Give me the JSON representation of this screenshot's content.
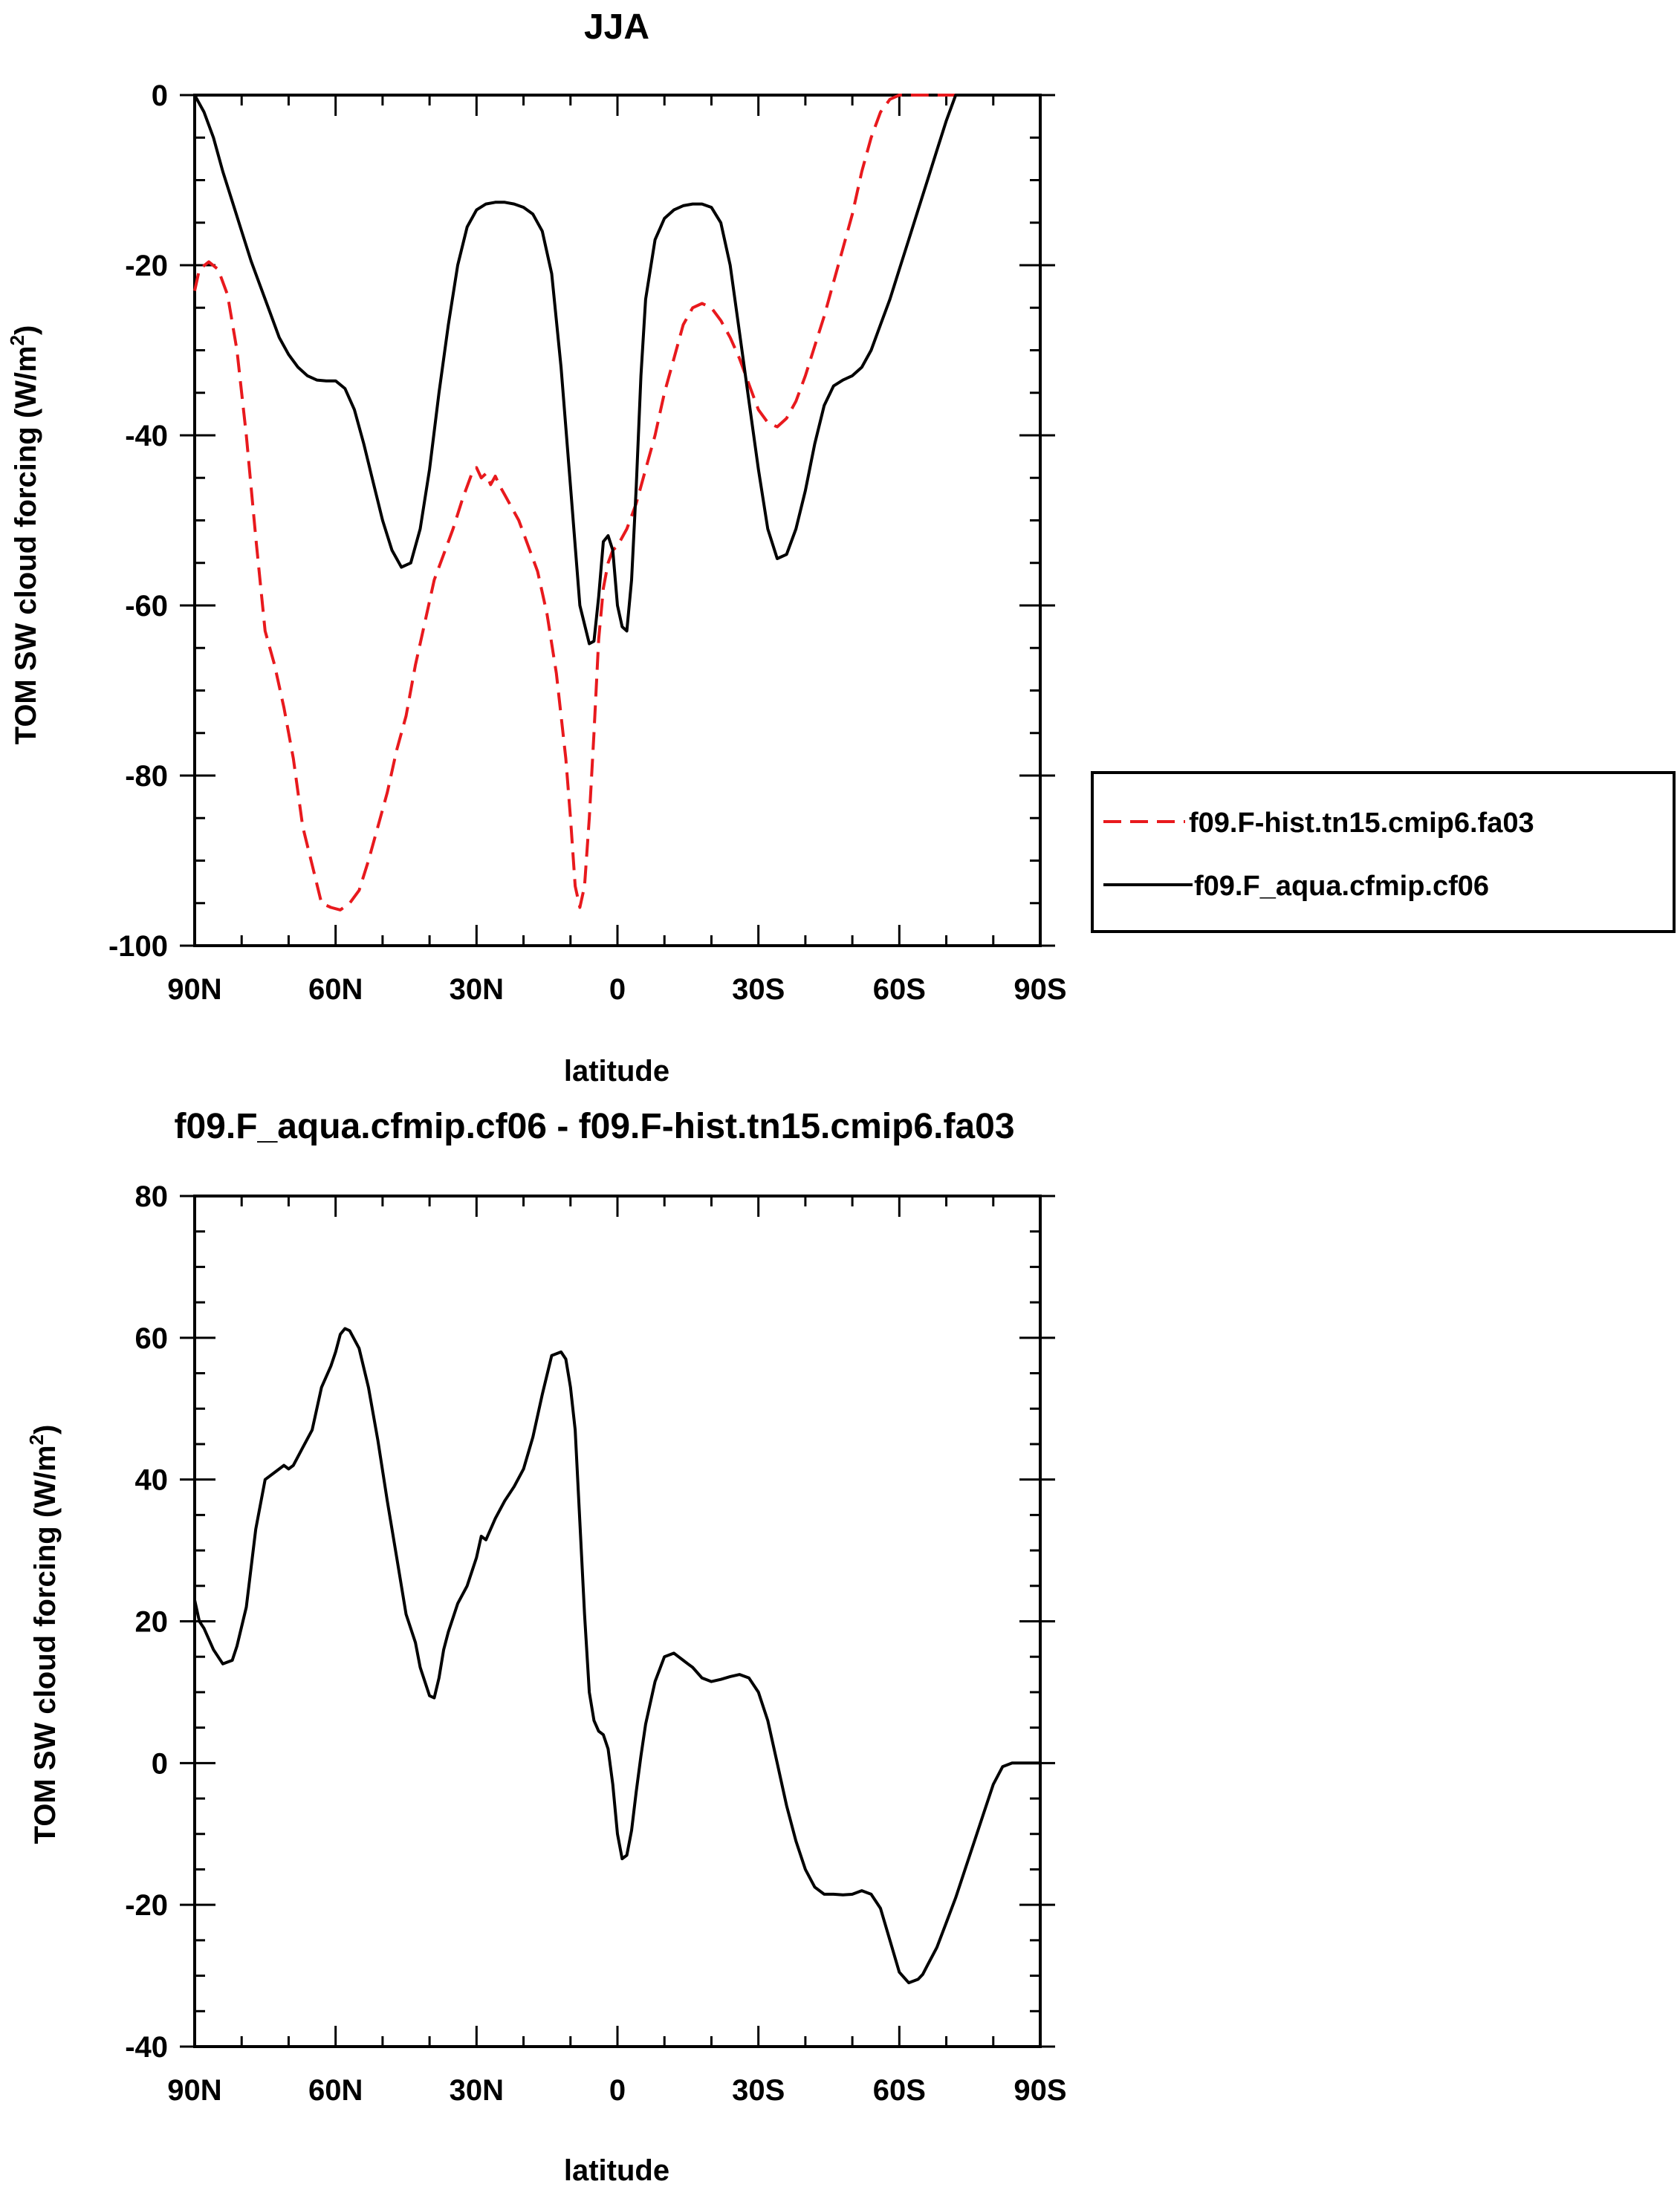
{
  "colors": {
    "hist": "#e8191d",
    "aqua": "#000000",
    "axis": "#000000"
  },
  "chart_data": [
    {
      "type": "line",
      "title": "JJA",
      "xlabel": "latitude",
      "ylabel": "TOM SW cloud forcing (W/m²)",
      "ylabel_main": "TOM SW cloud forcing (W/m",
      "ylabel_sup": "2",
      "ylabel_end": ")",
      "x_tick_values": [
        90,
        60,
        30,
        0,
        -30,
        -60,
        -90
      ],
      "x_tick_labels": [
        "90N",
        "60N",
        "30N",
        "0",
        "30S",
        "60S",
        "90S"
      ],
      "y_tick_values": [
        0,
        -20,
        -40,
        -60,
        -80,
        -100
      ],
      "y_tick_labels": [
        "0",
        "-20",
        "-40",
        "-60",
        "-80",
        "-100"
      ],
      "xlim": [
        90,
        -90
      ],
      "ylim": [
        -100,
        0
      ],
      "grid": false,
      "legend_position": "right-outside",
      "series": [
        {
          "name": "f09.F-hist.tn15.cmip6.fa03",
          "style": "dashed",
          "color": "#e8191d",
          "x": [
            90,
            89,
            87,
            85,
            83,
            81,
            79,
            77,
            75,
            73,
            71,
            69,
            67,
            65,
            63,
            61,
            59,
            57,
            55,
            53,
            51,
            49,
            47,
            45,
            43,
            41,
            39,
            37,
            35,
            33,
            31,
            30,
            29,
            28,
            27,
            26,
            25,
            24,
            23,
            21,
            19,
            17,
            15,
            13,
            11,
            10,
            9,
            8,
            7,
            6,
            5,
            4,
            3,
            2,
            1,
            0,
            -2,
            -4,
            -6,
            -8,
            -10,
            -12,
            -14,
            -16,
            -18,
            -20,
            -22,
            -24,
            -26,
            -28,
            -30,
            -32,
            -34,
            -36,
            -38,
            -40,
            -42,
            -44,
            -46,
            -48,
            -50,
            -52,
            -54,
            -56,
            -58,
            -60,
            -62,
            -64,
            -66,
            -68,
            -70,
            -72,
            -74,
            -76,
            -80,
            -85,
            -90
          ],
          "y": [
            -23,
            -20.5,
            -19.6,
            -20.5,
            -23.5,
            -30,
            -40,
            -52,
            -63,
            -67,
            -72,
            -78,
            -86,
            -90.5,
            -95,
            -95.5,
            -95.8,
            -95,
            -93.5,
            -90,
            -86,
            -82,
            -77,
            -73,
            -67,
            -62,
            -57,
            -54,
            -51,
            -47.5,
            -44.5,
            -43.8,
            -45,
            -44.5,
            -45.8,
            -44.8,
            -46,
            -47,
            -48,
            -50,
            -53,
            -56,
            -61,
            -68,
            -78,
            -85,
            -93,
            -95.5,
            -93,
            -85,
            -75,
            -64,
            -58,
            -55,
            -53.5,
            -53,
            -51,
            -48,
            -44,
            -40,
            -35,
            -31,
            -27,
            -25,
            -24.5,
            -25,
            -26.5,
            -28.5,
            -31,
            -34,
            -37,
            -38.5,
            -39,
            -38,
            -36,
            -33,
            -29.5,
            -26,
            -22,
            -18,
            -14,
            -9,
            -5,
            -2,
            -0.5,
            0,
            0,
            0,
            0,
            0,
            0,
            0,
            0,
            0,
            0,
            0,
            0
          ]
        },
        {
          "name": "f09.F_aqua.cfmip.cf06",
          "style": "solid",
          "color": "#000000",
          "x": [
            90,
            88,
            86,
            84,
            82,
            80,
            78,
            76,
            74,
            72,
            70,
            68,
            66,
            64,
            62,
            60,
            58,
            56,
            54,
            52,
            50,
            48,
            46,
            44,
            42,
            40,
            38,
            36,
            34,
            32,
            30,
            28,
            26,
            24,
            22,
            20,
            18,
            16,
            14,
            12,
            10,
            8,
            6,
            5,
            4,
            3,
            2,
            1,
            0,
            -1,
            -2,
            -3,
            -4,
            -5,
            -6,
            -8,
            -10,
            -12,
            -14,
            -16,
            -18,
            -20,
            -22,
            -24,
            -26,
            -28,
            -30,
            -32,
            -34,
            -36,
            -38,
            -40,
            -42,
            -44,
            -46,
            -48,
            -50,
            -52,
            -54,
            -56,
            -58,
            -60,
            -62,
            -64,
            -66,
            -68,
            -70,
            -72,
            -74,
            -76,
            -78,
            -80,
            -82,
            -84,
            -86,
            -88,
            -90
          ],
          "y": [
            0,
            -2,
            -5,
            -9,
            -12.5,
            -16,
            -19.5,
            -22.5,
            -25.5,
            -28.5,
            -30.5,
            -32,
            -33,
            -33.5,
            -33.6,
            -33.6,
            -34.5,
            -37,
            -41,
            -45.5,
            -50,
            -53.5,
            -55.5,
            -55,
            -51,
            -44,
            -35,
            -27,
            -20,
            -15.5,
            -13.5,
            -12.8,
            -12.6,
            -12.6,
            -12.8,
            -13.2,
            -14,
            -16,
            -21,
            -32,
            -46,
            -60,
            -64.5,
            -64.2,
            -59,
            -52.5,
            -51.8,
            -53.5,
            -60,
            -62.5,
            -63,
            -57,
            -46,
            -33,
            -24,
            -17,
            -14.5,
            -13.5,
            -13,
            -12.8,
            -12.8,
            -13.2,
            -15,
            -20,
            -28,
            -36,
            -44,
            -51,
            -54.5,
            -54,
            -51,
            -46.5,
            -41,
            -36.5,
            -34.2,
            -33.5,
            -33,
            -32,
            -30,
            -27,
            -24,
            -20.5,
            -17,
            -13.5,
            -10,
            -6.5,
            -3,
            0,
            0,
            0,
            0,
            0,
            0,
            0,
            0,
            0,
            0
          ]
        }
      ]
    },
    {
      "type": "line",
      "title": "f09.F_aqua.cfmip.cf06 - f09.F-hist.tn15.cmip6.fa03",
      "xlabel": "latitude",
      "ylabel": "TOM SW cloud forcing (W/m²)",
      "ylabel_main": "TOM SW cloud forcing (W/m",
      "ylabel_sup": "2",
      "ylabel_end": ")",
      "x_tick_values": [
        90,
        60,
        30,
        0,
        -30,
        -60,
        -90
      ],
      "x_tick_labels": [
        "90N",
        "60N",
        "30N",
        "0",
        "30S",
        "60S",
        "90S"
      ],
      "y_tick_values": [
        80,
        60,
        40,
        20,
        0,
        -20,
        -40
      ],
      "y_tick_labels": [
        "80",
        "60",
        "40",
        "20",
        "0",
        "-20",
        "-40"
      ],
      "xlim": [
        90,
        -90
      ],
      "ylim": [
        -40,
        80
      ],
      "grid": false,
      "series": [
        {
          "style": "solid",
          "color": "#000000",
          "x": [
            90,
            89,
            88,
            86,
            84,
            82,
            81,
            79,
            77,
            75,
            73,
            72,
            71,
            70,
            69,
            67,
            65,
            63,
            61,
            60,
            59,
            58,
            57,
            55,
            53,
            51,
            49,
            47,
            45,
            43,
            42,
            41,
            40,
            39,
            38,
            37,
            36,
            35,
            34,
            32,
            30,
            29,
            28,
            27,
            26,
            24,
            22,
            20,
            18,
            16,
            14,
            12,
            11,
            10,
            9,
            8,
            7,
            6,
            5,
            4,
            3,
            2,
            1,
            0,
            -1,
            -2,
            -3,
            -4,
            -5,
            -6,
            -8,
            -10,
            -12,
            -13,
            -14,
            -15,
            -16,
            -18,
            -20,
            -22,
            -24,
            -26,
            -28,
            -30,
            -32,
            -34,
            -36,
            -38,
            -40,
            -42,
            -44,
            -46,
            -48,
            -50,
            -52,
            -54,
            -56,
            -58,
            -60,
            -62,
            -64,
            -65,
            -66,
            -68,
            -70,
            -72,
            -74,
            -76,
            -78,
            -80,
            -82,
            -84,
            -86,
            -88,
            -90
          ],
          "y": [
            23,
            20,
            19,
            16,
            14,
            14.5,
            16.5,
            22,
            33,
            40,
            41,
            41.5,
            42,
            41.5,
            42,
            44.5,
            47,
            53,
            56,
            58,
            60.5,
            61.3,
            61,
            58.5,
            53,
            45.5,
            37,
            29,
            21,
            17,
            13.5,
            11.5,
            9.5,
            9.2,
            12,
            16,
            18.5,
            20.5,
            22.5,
            25,
            29,
            32,
            31.5,
            33,
            34.5,
            37,
            39,
            41.5,
            46,
            52,
            57.5,
            58,
            57,
            53,
            47,
            34,
            21,
            10,
            6,
            4.5,
            4,
            2,
            -3,
            -10,
            -13.5,
            -13,
            -9.5,
            -4,
            1,
            5.5,
            11.5,
            15,
            15.5,
            15,
            14.5,
            14,
            13.5,
            12,
            11.5,
            11.8,
            12.2,
            12.5,
            12,
            10,
            6,
            0,
            -6,
            -11,
            -15,
            -17.5,
            -18.5,
            -18.5,
            -18.6,
            -18.5,
            -18,
            -18.5,
            -20.5,
            -25,
            -29.5,
            -31,
            -30.5,
            -29.8,
            -28.5,
            -26,
            -22.5,
            -19,
            -15,
            -11,
            -7,
            -3,
            -0.5,
            0,
            0,
            0,
            0
          ]
        }
      ]
    }
  ]
}
